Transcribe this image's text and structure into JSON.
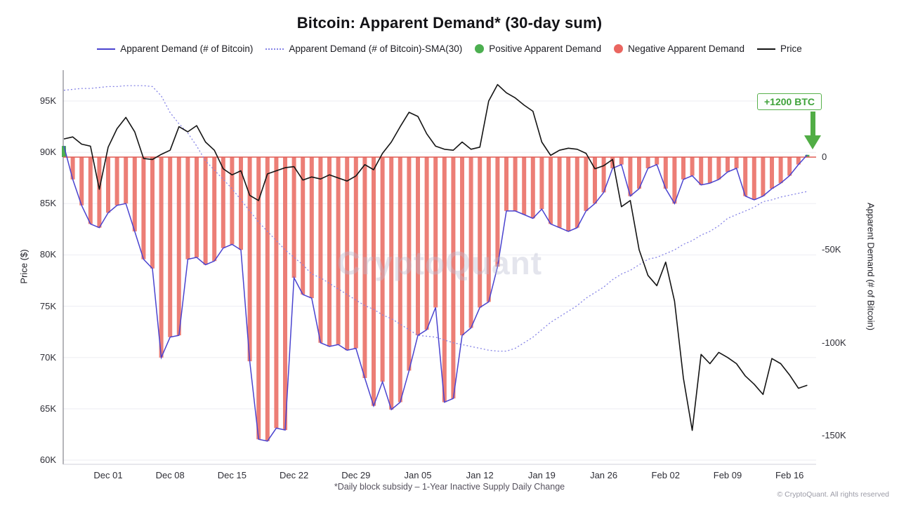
{
  "title": "Bitcoin: Apparent Demand* (30-day sum)",
  "watermark": "CryptoQuant",
  "footnote": "*Daily block subsidy – 1-Year Inactive Supply Daily Change",
  "copyright": "© CryptoQuant. All rights reserved",
  "annotation": {
    "text": "+1200 BTC"
  },
  "colors": {
    "demand_line": "#4a43cf",
    "sma_line": "#8583e6",
    "bar_negative": "#e96c63",
    "bar_positive": "#4caf50",
    "price_line": "#141414",
    "zero_line": "#e05c55",
    "annotation_green": "#51ad45",
    "gridline": "#ededf2"
  },
  "legend": [
    {
      "label": "Apparent Demand (# of Bitcoin)",
      "marker": "line-solid",
      "color": "#4a43cf"
    },
    {
      "label": "Apparent Demand (# of Bitcoin)-SMA(30)",
      "marker": "line-dotted",
      "color": "#8583e6"
    },
    {
      "label": "Positive Apparent Demand",
      "marker": "circle",
      "color": "#4caf50"
    },
    {
      "label": "Negative Apparent Demand",
      "marker": "circle",
      "color": "#ea6660"
    },
    {
      "label": "Price",
      "marker": "line-solid",
      "color": "#141414"
    }
  ],
  "left_axis": {
    "label": "Price ($)",
    "ticks": [
      {
        "label": "95K",
        "value": 95000
      },
      {
        "label": "90K",
        "value": 90000
      },
      {
        "label": "85K",
        "value": 85000
      },
      {
        "label": "80K",
        "value": 80000
      },
      {
        "label": "75K",
        "value": 75000
      },
      {
        "label": "70K",
        "value": 70000
      },
      {
        "label": "65K",
        "value": 65000
      },
      {
        "label": "60K",
        "value": 60000
      }
    ]
  },
  "right_axis": {
    "label": "Apparent Demand (# of Bitcoin)",
    "ticks": [
      {
        "label": "0",
        "value": 0
      },
      {
        "label": "-50K",
        "value": -50000
      },
      {
        "label": "-100K",
        "value": -100000
      },
      {
        "label": "-150K",
        "value": -150000
      }
    ]
  },
  "chart_data": {
    "type": "bar+line",
    "title": "Bitcoin: Apparent Demand* (30-day sum)",
    "left_axis_label": "Price ($)",
    "right_axis_label": "Apparent Demand (# of Bitcoin)",
    "left_axis_range_usd": [
      60000,
      98000
    ],
    "right_axis_range_btc": [
      -165000,
      47000
    ],
    "last_point_annotation_btc": 1200,
    "x_ticks": [
      {
        "label": "Dec 01",
        "index": 5
      },
      {
        "label": "Dec 08",
        "index": 12
      },
      {
        "label": "Dec 15",
        "index": 19
      },
      {
        "label": "Dec 22",
        "index": 26
      },
      {
        "label": "Dec 29",
        "index": 33
      },
      {
        "label": "Jan 05",
        "index": 40
      },
      {
        "label": "Jan 12",
        "index": 47
      },
      {
        "label": "Jan 19",
        "index": 54
      },
      {
        "label": "Jan 26",
        "index": 61
      },
      {
        "label": "Feb 02",
        "index": 68
      },
      {
        "label": "Feb 09",
        "index": 75
      },
      {
        "label": "Feb 16",
        "index": 82
      }
    ],
    "dates": [
      "Nov 26",
      "Nov 27",
      "Nov 28",
      "Nov 29",
      "Nov 30",
      "Dec 01",
      "Dec 02",
      "Dec 03",
      "Dec 04",
      "Dec 05",
      "Dec 06",
      "Dec 07",
      "Dec 08",
      "Dec 09",
      "Dec 10",
      "Dec 11",
      "Dec 12",
      "Dec 13",
      "Dec 14",
      "Dec 15",
      "Dec 16",
      "Dec 17",
      "Dec 18",
      "Dec 19",
      "Dec 20",
      "Dec 21",
      "Dec 22",
      "Dec 23",
      "Dec 24",
      "Dec 25",
      "Dec 26",
      "Dec 27",
      "Dec 28",
      "Dec 29",
      "Dec 30",
      "Dec 31",
      "Jan 01",
      "Jan 02",
      "Jan 03",
      "Jan 04",
      "Jan 05",
      "Jan 06",
      "Jan 07",
      "Jan 08",
      "Jan 09",
      "Jan 10",
      "Jan 11",
      "Jan 12",
      "Jan 13",
      "Jan 14",
      "Jan 15",
      "Jan 16",
      "Jan 17",
      "Jan 18",
      "Jan 19",
      "Jan 20",
      "Jan 21",
      "Jan 22",
      "Jan 23",
      "Jan 24",
      "Jan 25",
      "Jan 26",
      "Jan 27",
      "Jan 28",
      "Jan 29",
      "Jan 30",
      "Jan 31",
      "Feb 01",
      "Feb 02",
      "Feb 03",
      "Feb 04",
      "Feb 05",
      "Feb 06",
      "Feb 07",
      "Feb 08",
      "Feb 09",
      "Feb 10",
      "Feb 11",
      "Feb 12",
      "Feb 13",
      "Feb 14",
      "Feb 15",
      "Feb 16",
      "Feb 17",
      "Feb 18"
    ],
    "series": [
      {
        "name": "Apparent Demand (# of Bitcoin)",
        "axis": "right",
        "unit": "BTC",
        "values": [
          6000,
          -12000,
          -26000,
          -36000,
          -38000,
          -30000,
          -26000,
          -25000,
          -40000,
          -55000,
          -60000,
          -108000,
          -97000,
          -96000,
          -55000,
          -54000,
          -58000,
          -56000,
          -49000,
          -47000,
          -50000,
          -110000,
          -152000,
          -153000,
          -146000,
          -147000,
          -65000,
          -74000,
          -76000,
          -100000,
          -102000,
          -101000,
          -104000,
          -103000,
          -119000,
          -134000,
          -121000,
          -136000,
          -132000,
          -115000,
          -96000,
          -93000,
          -81000,
          -132000,
          -130000,
          -96000,
          -92000,
          -81000,
          -78000,
          -59000,
          -29000,
          -29000,
          -31000,
          -33000,
          -28000,
          -36000,
          -38000,
          -40000,
          -38000,
          -29000,
          -25000,
          -19000,
          -6000,
          -4000,
          -21000,
          -17000,
          -6000,
          -4000,
          -17000,
          -25000,
          -12000,
          -10000,
          -15000,
          -14000,
          -12000,
          -8000,
          -6000,
          -21000,
          -23000,
          -21000,
          -17000,
          -14000,
          -10000,
          -4000,
          1200
        ]
      },
      {
        "name": "Apparent Demand (# of Bitcoin)-SMA(30)",
        "axis": "right",
        "unit": "BTC",
        "values": [
          36000,
          36500,
          37000,
          37000,
          37500,
          38000,
          38000,
          38500,
          38500,
          38500,
          38000,
          33000,
          24000,
          18000,
          13000,
          6000,
          -2000,
          -7000,
          -12000,
          -17000,
          -23000,
          -29000,
          -35000,
          -40000,
          -45000,
          -50000,
          -54000,
          -58000,
          -63000,
          -65000,
          -68000,
          -71000,
          -74000,
          -77000,
          -80000,
          -82000,
          -85000,
          -87000,
          -90000,
          -93000,
          -96000,
          -96500,
          -97000,
          -98500,
          -100000,
          -101000,
          -102000,
          -103000,
          -104000,
          -104500,
          -104500,
          -103000,
          -100000,
          -97000,
          -93000,
          -89000,
          -86000,
          -83000,
          -80000,
          -76000,
          -73000,
          -70000,
          -66000,
          -63000,
          -61000,
          -58000,
          -55000,
          -54000,
          -52000,
          -50000,
          -47000,
          -45000,
          -42000,
          -40000,
          -37000,
          -33000,
          -31000,
          -29000,
          -27000,
          -24000,
          -23000,
          -21500,
          -20500,
          -19500,
          -18500
        ]
      },
      {
        "name": "Price",
        "axis": "left",
        "unit": "USD",
        "values": [
          91300,
          91500,
          90800,
          90600,
          86400,
          90500,
          92300,
          93400,
          92000,
          89400,
          89300,
          89800,
          90200,
          92500,
          92000,
          92600,
          91000,
          90200,
          88400,
          87800,
          88200,
          85800,
          85300,
          87900,
          88200,
          88500,
          88600,
          87300,
          87600,
          87400,
          87800,
          87500,
          87200,
          87700,
          88800,
          88300,
          89900,
          91000,
          92500,
          93900,
          93500,
          91800,
          90600,
          90300,
          90200,
          91000,
          90300,
          90500,
          95000,
          96600,
          95800,
          95300,
          94600,
          94000,
          91000,
          89700,
          90200,
          90400,
          90300,
          89900,
          88400,
          88700,
          89300,
          84700,
          85300,
          80500,
          78000,
          77000,
          79300,
          75500,
          68000,
          62900,
          70300,
          69400,
          70500,
          70000,
          69400,
          68200,
          67400,
          66400,
          69900,
          69400,
          68300,
          67000,
          67300
        ]
      }
    ]
  }
}
